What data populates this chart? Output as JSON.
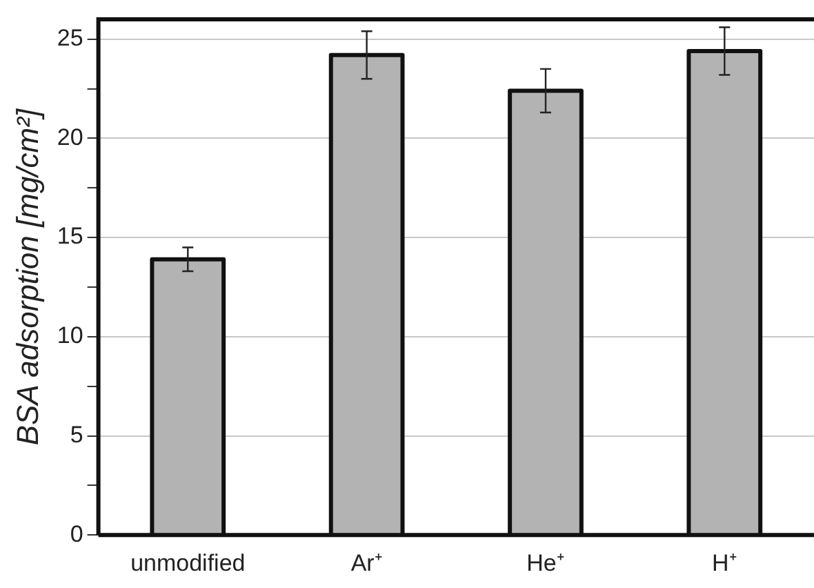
{
  "chart_data": {
    "type": "bar",
    "ylabel": "BSA adsorption [mg/cm²]",
    "categories": [
      "unmodified",
      "Ar⁺",
      "He⁺",
      "H⁺"
    ],
    "values": [
      13.9,
      24.2,
      22.4,
      24.4
    ],
    "errors": [
      0.6,
      1.2,
      1.1,
      1.2
    ],
    "color": "#b3b3b3",
    "ylim": [
      0,
      26
    ],
    "yticks": [
      0,
      {
        "value": 2.5,
        "label": null
      },
      5,
      {
        "value": 7.5,
        "label": null
      },
      10,
      {
        "value": 12.5,
        "label": null
      },
      15,
      {
        "value": 17.5,
        "label": null
      },
      20,
      {
        "value": 22.5,
        "label": null
      },
      25
    ],
    "grid": "y",
    "legend": false
  }
}
